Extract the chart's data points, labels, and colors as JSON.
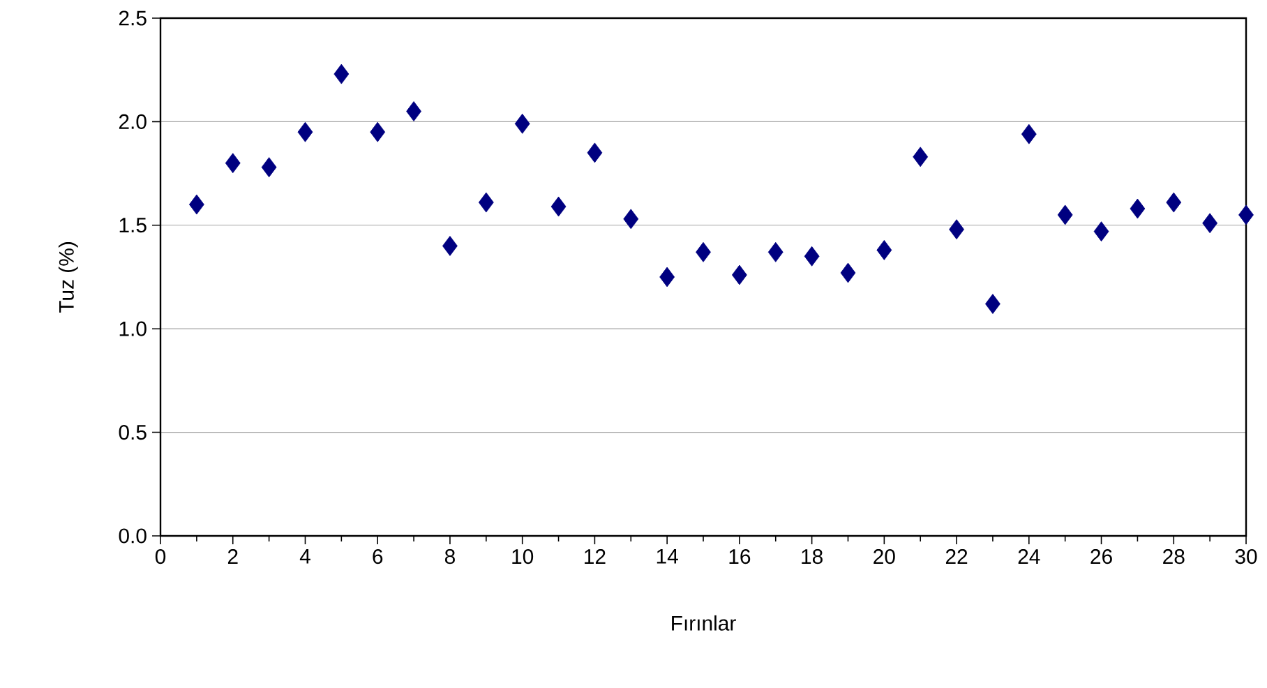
{
  "chart_data": {
    "type": "scatter",
    "xlabel": "Fırınlar",
    "ylabel": "Tuz (%)",
    "x": [
      1,
      2,
      3,
      4,
      5,
      6,
      7,
      8,
      9,
      10,
      11,
      12,
      13,
      14,
      15,
      16,
      17,
      18,
      19,
      20,
      21,
      22,
      23,
      24,
      25,
      26,
      27,
      28,
      29,
      30
    ],
    "values": [
      1.6,
      1.8,
      1.78,
      1.95,
      2.23,
      1.95,
      2.05,
      1.4,
      1.61,
      1.99,
      1.59,
      1.85,
      1.53,
      1.25,
      1.37,
      1.26,
      1.37,
      1.35,
      1.27,
      1.38,
      1.83,
      1.48,
      1.12,
      1.94,
      1.55,
      1.47,
      1.58,
      1.61,
      1.51,
      1.55
    ],
    "color": "#000080",
    "marker": "diamond",
    "xlim": [
      0,
      30
    ],
    "xticks": [
      0,
      2,
      4,
      6,
      8,
      10,
      12,
      14,
      16,
      18,
      20,
      22,
      24,
      26,
      28,
      30
    ],
    "ylim": [
      0,
      2.5
    ],
    "yticks": [
      {
        "value": 0,
        "label": "0.0"
      },
      {
        "value": 0.5,
        "label": "0.5"
      },
      {
        "value": 1,
        "label": "1.0"
      },
      {
        "value": 1.5,
        "label": "1.5"
      },
      {
        "value": 2,
        "label": "2.0"
      },
      {
        "value": 2.5,
        "label": "2.5"
      }
    ],
    "grid": "y"
  }
}
